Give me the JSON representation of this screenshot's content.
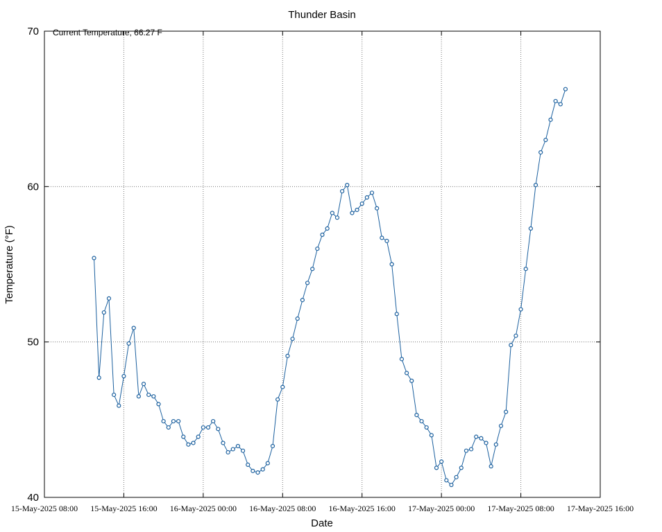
{
  "chart_data": {
    "type": "line",
    "title": "Thunder Basin",
    "annotation": "Current Temperature, 66.27 F",
    "x_label": "Date",
    "y_label": "Temperature (°F)",
    "xlim": [
      "15-May-2025 08:00",
      "17-May-2025 16:00"
    ],
    "xticks": [
      "15-May-2025 08:00",
      "15-May-2025 16:00",
      "16-May-2025 00:00",
      "16-May-2025 08:00",
      "16-May-2025 16:00",
      "17-May-2025 00:00",
      "17-May-2025 08:00",
      "17-May-2025 16:00"
    ],
    "ylim": [
      40,
      70
    ],
    "yticks": [
      40,
      50,
      60,
      70
    ],
    "grid": true,
    "x": [
      "15-May-2025 13:00",
      "15-May-2025 13:30",
      "15-May-2025 14:00",
      "15-May-2025 14:30",
      "15-May-2025 15:00",
      "15-May-2025 15:30",
      "15-May-2025 16:00",
      "15-May-2025 16:30",
      "15-May-2025 17:00",
      "15-May-2025 17:30",
      "15-May-2025 18:00",
      "15-May-2025 18:30",
      "15-May-2025 19:00",
      "15-May-2025 19:30",
      "15-May-2025 20:00",
      "15-May-2025 20:30",
      "15-May-2025 21:00",
      "15-May-2025 21:30",
      "15-May-2025 22:00",
      "15-May-2025 22:30",
      "15-May-2025 23:00",
      "15-May-2025 23:30",
      "16-May-2025 00:00",
      "16-May-2025 00:30",
      "16-May-2025 01:00",
      "16-May-2025 01:30",
      "16-May-2025 02:00",
      "16-May-2025 02:30",
      "16-May-2025 03:00",
      "16-May-2025 03:30",
      "16-May-2025 04:00",
      "16-May-2025 04:30",
      "16-May-2025 05:00",
      "16-May-2025 05:30",
      "16-May-2025 06:00",
      "16-May-2025 06:30",
      "16-May-2025 07:00",
      "16-May-2025 07:30",
      "16-May-2025 08:00",
      "16-May-2025 08:30",
      "16-May-2025 09:00",
      "16-May-2025 09:30",
      "16-May-2025 10:00",
      "16-May-2025 10:30",
      "16-May-2025 11:00",
      "16-May-2025 11:30",
      "16-May-2025 12:00",
      "16-May-2025 12:30",
      "16-May-2025 13:00",
      "16-May-2025 13:30",
      "16-May-2025 14:00",
      "16-May-2025 14:30",
      "16-May-2025 15:00",
      "16-May-2025 15:30",
      "16-May-2025 16:00",
      "16-May-2025 16:30",
      "16-May-2025 17:00",
      "16-May-2025 17:30",
      "16-May-2025 18:00",
      "16-May-2025 18:30",
      "16-May-2025 19:00",
      "16-May-2025 19:30",
      "16-May-2025 20:00",
      "16-May-2025 20:30",
      "16-May-2025 21:00",
      "16-May-2025 21:30",
      "16-May-2025 22:00",
      "16-May-2025 22:30",
      "16-May-2025 23:00",
      "16-May-2025 23:30",
      "17-May-2025 00:00",
      "17-May-2025 00:30",
      "17-May-2025 01:00",
      "17-May-2025 01:30",
      "17-May-2025 02:00",
      "17-May-2025 02:30",
      "17-May-2025 03:00",
      "17-May-2025 03:30",
      "17-May-2025 04:00",
      "17-May-2025 04:30",
      "17-May-2025 05:00",
      "17-May-2025 05:30",
      "17-May-2025 06:00",
      "17-May-2025 06:30",
      "17-May-2025 07:00",
      "17-May-2025 07:30",
      "17-May-2025 08:00",
      "17-May-2025 08:30",
      "17-May-2025 09:00",
      "17-May-2025 09:30",
      "17-May-2025 10:00",
      "17-May-2025 10:30",
      "17-May-2025 11:00",
      "17-May-2025 11:30",
      "17-May-2025 12:00",
      "17-May-2025 12:30"
    ],
    "series": [
      {
        "name": "Temperature",
        "color": "#1a5f9e",
        "values": [
          55.4,
          47.7,
          51.9,
          52.8,
          46.6,
          45.9,
          47.8,
          49.9,
          50.9,
          46.5,
          47.3,
          46.6,
          46.5,
          46.0,
          44.9,
          44.5,
          44.9,
          44.9,
          43.9,
          43.4,
          43.5,
          43.9,
          44.5,
          44.5,
          44.9,
          44.4,
          43.5,
          42.9,
          43.1,
          43.3,
          43.0,
          42.1,
          41.7,
          41.6,
          41.8,
          42.2,
          43.3,
          46.3,
          47.1,
          49.1,
          50.2,
          51.5,
          52.7,
          53.8,
          54.7,
          56.0,
          56.9,
          57.3,
          58.3,
          58.0,
          59.7,
          60.1,
          58.3,
          58.5,
          58.9,
          59.3,
          59.6,
          58.6,
          56.7,
          56.5,
          55.0,
          51.8,
          48.9,
          48.0,
          47.5,
          45.3,
          44.9,
          44.5,
          44.0,
          41.9,
          42.3,
          41.1,
          40.8,
          41.3,
          41.9,
          43.0,
          43.1,
          43.9,
          43.8,
          43.5,
          42.0,
          43.4,
          44.6,
          45.5,
          49.8,
          50.4,
          52.1,
          54.7,
          57.3,
          60.1,
          62.2,
          63.0,
          64.3,
          65.5,
          65.3,
          66.27
        ]
      }
    ]
  }
}
